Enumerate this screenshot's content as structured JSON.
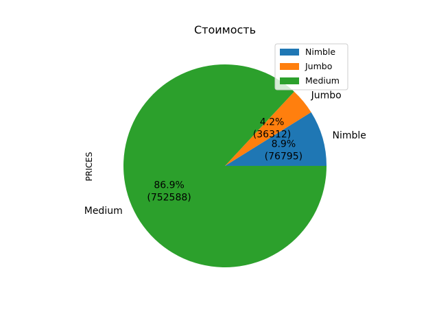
{
  "chart_data": {
    "type": "pie",
    "title": "Стоимость",
    "ylabel": "PRICES",
    "slices": [
      {
        "label": "Nimble",
        "value": 76795,
        "percent": "8.9%",
        "value_label": "(76795)",
        "color": "#1f77b4"
      },
      {
        "label": "Jumbo",
        "value": 36312,
        "percent": "4.2%",
        "value_label": "(36312)",
        "color": "#ff7f0e"
      },
      {
        "label": "Medium",
        "value": 752588,
        "percent": "86.9%",
        "value_label": "(752588)",
        "color": "#2ca02c"
      }
    ],
    "start_angle": 0,
    "direction": "counterclockwise",
    "legend": {
      "position": "top-right",
      "entries": [
        "Nimble",
        "Jumbo",
        "Medium"
      ]
    }
  }
}
